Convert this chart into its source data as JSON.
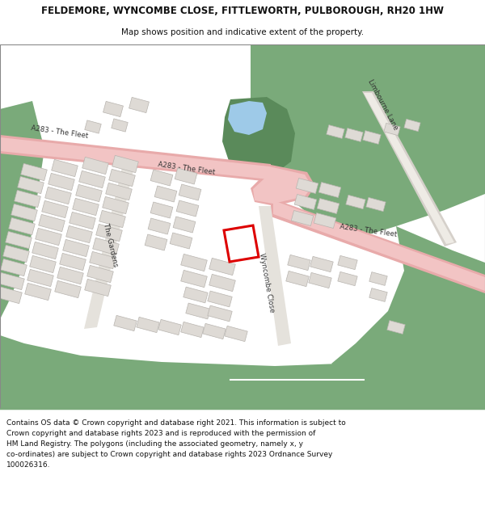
{
  "title_line1": "FELDEMORE, WYNCOMBE CLOSE, FITTLEWORTH, PULBOROUGH, RH20 1HW",
  "title_line2": "Map shows position and indicative extent of the property.",
  "footer_lines": [
    "Contains OS data © Crown copyright and database right 2021. This information is subject to Crown copyright and database rights 2023 and is reproduced with the permission of",
    "HM Land Registry. The polygons (including the associated geometry, namely x, y co-ordinates) are subject to Crown copyright and database rights 2023 Ordnance Survey 100026316."
  ],
  "map_bg": "#f7f6f1",
  "green1": "#7aaa7a",
  "green2": "#5a8a5a",
  "road_pink": "#f2c4c4",
  "road_pink_border": "#e8aaaa",
  "road_white": "#ffffff",
  "road_gray": "#e0deda",
  "water_blue": "#9ecae8",
  "building_fill": "#dedad5",
  "building_edge": "#b8b4af",
  "red_boundary": "#dd0000",
  "text_color": "#333333",
  "header_bg": "#ffffff",
  "footer_bg": "#ffffff",
  "green_strip": "#7aaa7a"
}
